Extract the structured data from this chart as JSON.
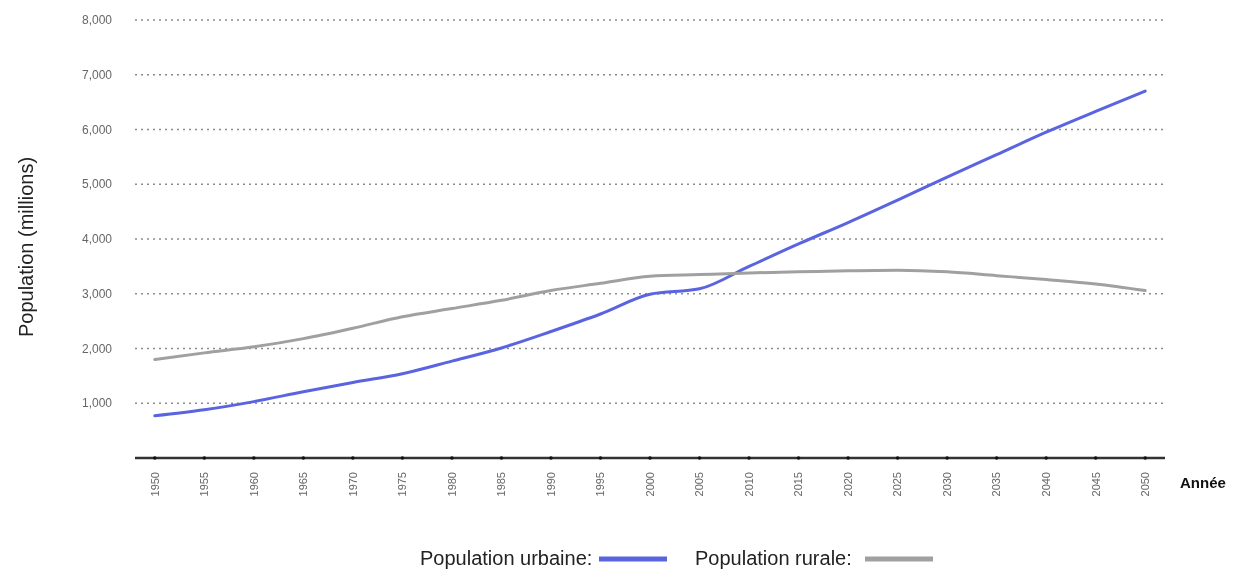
{
  "chart_data": {
    "type": "line",
    "xlabel": "Année",
    "ylabel": "Population (millions)",
    "x": [
      1950,
      1955,
      1960,
      1965,
      1970,
      1975,
      1980,
      1985,
      1990,
      1995,
      2000,
      2005,
      2010,
      2015,
      2020,
      2025,
      2030,
      2035,
      2040,
      2045,
      2050
    ],
    "series": [
      {
        "name": "Population urbaine:",
        "color": "#5a64e0",
        "values": [
          770,
          880,
          1030,
          1210,
          1380,
          1540,
          1770,
          2010,
          2310,
          2630,
          2990,
          3090,
          3500,
          3910,
          4300,
          4710,
          5130,
          5540,
          5950,
          6330,
          6700
        ]
      },
      {
        "name": "Population rurale:",
        "color": "#a0a0a0",
        "values": [
          1800,
          1920,
          2030,
          2180,
          2370,
          2580,
          2730,
          2880,
          3060,
          3190,
          3320,
          3350,
          3380,
          3400,
          3420,
          3430,
          3400,
          3330,
          3260,
          3180,
          3060
        ]
      }
    ],
    "xlim": [
      1948,
      2052
    ],
    "xticks": [
      1950,
      1955,
      1960,
      1965,
      1970,
      1975,
      1980,
      1985,
      1990,
      1995,
      2000,
      2005,
      2010,
      2015,
      2020,
      2025,
      2030,
      2035,
      2040,
      2045,
      2050
    ],
    "ylim": [
      0,
      8000
    ],
    "yticks": [
      {
        "value": 1000,
        "label": "1,000"
      },
      {
        "value": 2000,
        "label": "2,000"
      },
      {
        "value": 3000,
        "label": "3,000"
      },
      {
        "value": 4000,
        "label": "4,000"
      },
      {
        "value": 5000,
        "label": "5,000"
      },
      {
        "value": 6000,
        "label": "6,000"
      },
      {
        "value": 7000,
        "label": "7,000"
      },
      {
        "value": 8000,
        "label": "8,000"
      }
    ],
    "grid": "y",
    "legend": "bottom",
    "marker": "none",
    "line_style": "solid"
  }
}
